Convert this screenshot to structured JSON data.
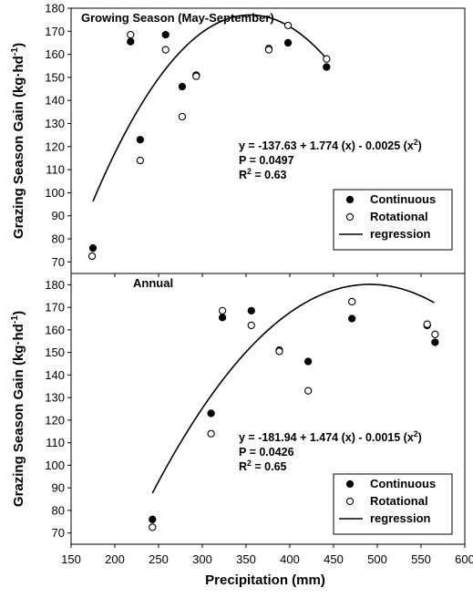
{
  "chart_data": [
    {
      "type": "scatter",
      "title": "Growing Season (May-September)",
      "ylabel": "Grazing Season Gain (kg·hd⁻¹)",
      "xlabel": "",
      "xlim": [
        150,
        600
      ],
      "ylim": [
        65,
        180
      ],
      "yticks": [
        "70",
        "80",
        "90",
        "100",
        "110",
        "120",
        "130",
        "140",
        "150",
        "160",
        "170",
        "180"
      ],
      "xticks": [],
      "series": [
        {
          "name": "Continuous",
          "marker": "filled-circle",
          "x": [
            175,
            218,
            229,
            258,
            277,
            293,
            376,
            398,
            442
          ],
          "y": [
            76,
            165.5,
            123,
            168.5,
            146,
            151,
            162.5,
            165,
            154.5
          ]
        },
        {
          "name": "Rotational",
          "marker": "open-circle",
          "x": [
            174,
            218,
            229,
            258,
            277,
            293,
            376,
            398,
            442
          ],
          "y": [
            72.5,
            168.5,
            114,
            162,
            133,
            150.5,
            162,
            172.5,
            158
          ]
        }
      ],
      "regression": {
        "name": "regression",
        "a": -137.63,
        "b": 1.774,
        "c": -0.0025,
        "x_from": 175,
        "x_to": 440
      },
      "annotation": {
        "equation": "y = -137.63 + 1.774 (x) - 0.0025 (x²)",
        "p": "P = 0.0497",
        "r2": "R² = 0.63"
      },
      "legend": {
        "position": "bottom-right",
        "items": [
          "Continuous",
          "Rotational",
          "regression"
        ]
      }
    },
    {
      "type": "scatter",
      "title": "Annual",
      "ylabel": "Grazing Season Gain (kg·hd⁻¹)",
      "xlabel": "Precipitation (mm)",
      "xlim": [
        150,
        600
      ],
      "ylim": [
        65,
        185
      ],
      "yticks": [
        "70",
        "80",
        "90",
        "100",
        "110",
        "120",
        "130",
        "140",
        "150",
        "160",
        "170",
        "180"
      ],
      "xticks": [
        "150",
        "200",
        "250",
        "300",
        "350",
        "400",
        "450",
        "500",
        "550",
        "600"
      ],
      "series": [
        {
          "name": "Continuous",
          "marker": "filled-circle",
          "x": [
            243,
            310,
            323,
            356,
            388,
            421,
            471,
            557,
            566
          ],
          "y": [
            76,
            123,
            165.5,
            168.5,
            151,
            146,
            165,
            162,
            154.5
          ]
        },
        {
          "name": "Rotational",
          "marker": "open-circle",
          "x": [
            243,
            310,
            323,
            356,
            388,
            421,
            471,
            557,
            566
          ],
          "y": [
            72.5,
            114,
            168.5,
            162,
            150.5,
            133,
            172.5,
            162.5,
            158
          ]
        }
      ],
      "regression": {
        "name": "regression",
        "a": -181.94,
        "b": 1.474,
        "c": -0.0015,
        "x_from": 243,
        "x_to": 565
      },
      "annotation": {
        "equation": "y = -181.94 + 1.474 (x) - 0.0015 (x²)",
        "p": "P = 0.0426",
        "r2": "R² = 0.65"
      },
      "legend": {
        "position": "bottom-right",
        "items": [
          "Continuous",
          "Rotational",
          "regression"
        ]
      }
    }
  ]
}
